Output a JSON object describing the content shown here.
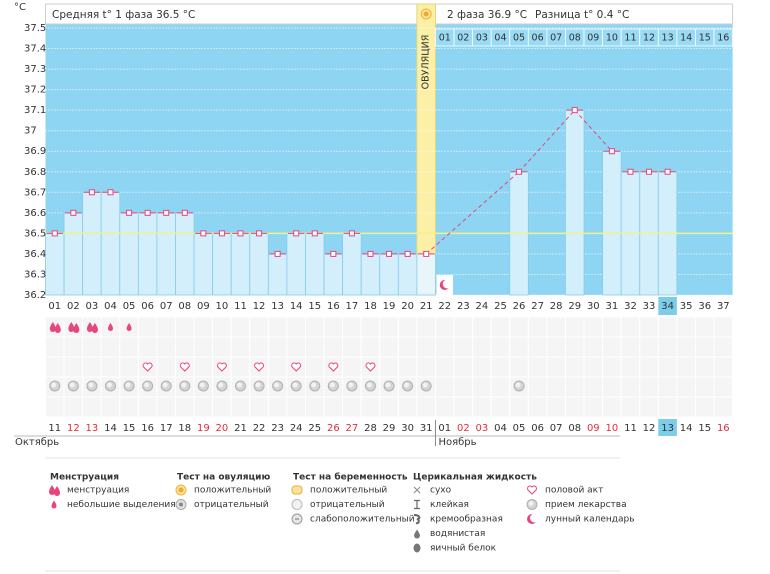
{
  "chart_data": {
    "type": "line",
    "y_unit": "°С",
    "header": {
      "phase1_label": "Средняя t° 1 фаза",
      "phase1_value": 36.5,
      "phase2_label": "2 фаза",
      "phase2_value": 36.9,
      "diff_label": "Разница t°",
      "diff_value": 0.4,
      "unit": "°С"
    },
    "ovulation_label": "ОВУЛЯЦИЯ",
    "ovulation_day": "21",
    "categories": [
      "01",
      "02",
      "03",
      "04",
      "05",
      "06",
      "07",
      "08",
      "09",
      "10",
      "11",
      "12",
      "13",
      "14",
      "15",
      "16",
      "17",
      "18",
      "19",
      "20",
      "21",
      "22",
      "23",
      "24",
      "25",
      "26",
      "27",
      "28",
      "29",
      "30",
      "31",
      "32",
      "33",
      "34",
      "35",
      "36",
      "37"
    ],
    "phase2_days": [
      "01",
      "02",
      "03",
      "04",
      "05",
      "06",
      "07",
      "08",
      "09",
      "10",
      "11",
      "12",
      "13",
      "14",
      "15",
      "16"
    ],
    "series": [
      {
        "color": "#e8457c",
        "values": [
          36.5,
          36.6,
          36.7,
          36.7,
          36.6,
          36.6,
          36.6,
          36.6,
          36.5,
          36.5,
          36.5,
          36.5,
          36.4,
          36.5,
          36.5,
          36.4,
          36.5,
          36.4,
          36.4,
          36.4,
          36.4,
          null,
          null,
          null,
          null,
          36.8,
          null,
          null,
          37.1,
          null,
          36.9,
          36.8,
          36.8,
          36.8,
          null,
          null,
          null
        ]
      }
    ],
    "ylim": [
      36.2,
      37.5
    ],
    "yticks": [
      36.2,
      36.3,
      36.4,
      36.5,
      36.6,
      36.7,
      36.8,
      36.9,
      37,
      37.1,
      37.2,
      37.3,
      37.4,
      37.5
    ],
    "grid": true,
    "today": "34",
    "dates": [
      "11",
      "12",
      "13",
      "14",
      "15",
      "16",
      "17",
      "18",
      "19",
      "20",
      "21",
      "22",
      "23",
      "24",
      "25",
      "26",
      "27",
      "28",
      "29",
      "30",
      "31",
      "01",
      "02",
      "03",
      "04",
      "05",
      "06",
      "07",
      "08",
      "09",
      "10",
      "11",
      "12",
      "13",
      "14",
      "15",
      "16"
    ],
    "weekend": [
      false,
      true,
      true,
      false,
      false,
      false,
      false,
      false,
      true,
      true,
      false,
      false,
      false,
      false,
      false,
      true,
      true,
      false,
      false,
      false,
      false,
      false,
      true,
      true,
      false,
      false,
      false,
      false,
      false,
      true,
      true,
      false,
      false,
      false,
      false,
      false,
      true
    ],
    "months": [
      "Октябрь",
      "Ноябрь"
    ],
    "menstruation_days": [
      "01",
      "02",
      "03"
    ],
    "spotting_days": [
      "04",
      "05"
    ],
    "intercourse_days": [
      "06",
      "08",
      "10",
      "12",
      "14",
      "16",
      "18"
    ],
    "medication_days": [
      "01",
      "02",
      "03",
      "04",
      "05",
      "06",
      "07",
      "08",
      "09",
      "10",
      "11",
      "12",
      "13",
      "14",
      "15",
      "16",
      "17",
      "18",
      "19",
      "20",
      "21",
      "26"
    ],
    "lunar_days": [
      "22"
    ],
    "legend": [
      {
        "title": "Менструация",
        "items": [
          "менструация",
          "небольшие выделения"
        ]
      },
      {
        "title": "Тест на овуляцию",
        "items": [
          "положительный",
          "отрицательный"
        ]
      },
      {
        "title": "Тест на беременность",
        "items": [
          "положительный",
          "отрицательный",
          "слабоположительный"
        ]
      },
      {
        "title": "Церикальная жидкость",
        "items": [
          "сухо",
          "клейкая",
          "кремообразная",
          "водянистая",
          "яичный белок"
        ]
      },
      {
        "items": [
          "половой акт",
          "прием лекарства",
          "лунный календарь"
        ]
      }
    ]
  }
}
